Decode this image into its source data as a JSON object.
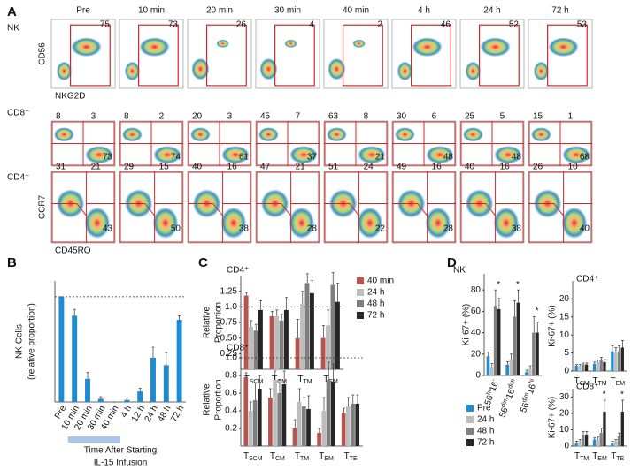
{
  "panels": [
    "A",
    "B",
    "C",
    "D"
  ],
  "panel_a": {
    "columns": [
      "Pre",
      "10 min",
      "20 min",
      "30 min",
      "40 min",
      "4 h",
      "24 h",
      "72 h"
    ],
    "rows": [
      {
        "label": "NK",
        "y_label": "CD56",
        "x_label": "NKG2D",
        "values": [
          [
            75
          ],
          [
            73
          ],
          [
            26
          ],
          [
            4
          ],
          [
            2
          ],
          [
            46
          ],
          [
            52
          ],
          [
            53
          ]
        ]
      },
      {
        "label": "CD8⁺",
        "values": [
          [
            8,
            3,
            73
          ],
          [
            8,
            2,
            74
          ],
          [
            20,
            3,
            61
          ],
          [
            45,
            7,
            37
          ],
          [
            63,
            8,
            21
          ],
          [
            30,
            6,
            48
          ],
          [
            25,
            5,
            48
          ],
          [
            15,
            1,
            68
          ]
        ]
      },
      {
        "label": "CD4⁺",
        "y_label": "CCR7",
        "x_label": "CD45RO",
        "values": [
          [
            31,
            21,
            43
          ],
          [
            29,
            15,
            50
          ],
          [
            40,
            16,
            38
          ],
          [
            47,
            21,
            28
          ],
          [
            51,
            24,
            22
          ],
          [
            49,
            16,
            28
          ],
          [
            40,
            16,
            38
          ],
          [
            26,
            10,
            40
          ]
        ]
      }
    ]
  },
  "chart_data": [
    {
      "type": "bar",
      "y_label": [
        "NK Cells",
        "(relative proportion)"
      ],
      "x_label": [
        "Time After Starting",
        "IL-15 Infusion"
      ],
      "categories": [
        "Pre",
        "10 min",
        "20 min",
        "30 min",
        "40 min",
        "4 h",
        "12 h",
        "24 h",
        "48 h",
        "72 h"
      ],
      "values": [
        1.0,
        0.82,
        0.22,
        0.03,
        0.0,
        0.02,
        0.1,
        0.42,
        0.35,
        0.78
      ],
      "errors": [
        0,
        0.06,
        0.06,
        0.02,
        0,
        0.02,
        0.03,
        0.1,
        0.12,
        0.04
      ],
      "color": "#1f8bd0",
      "ylim": [
        0,
        1.15
      ],
      "reference_line": 1
    },
    {
      "type": "grouped_bar",
      "title": "CD4⁺",
      "y_label": [
        "Relative",
        "Proportion"
      ],
      "categories": [
        "TSCM",
        "TCM",
        "TTM",
        "TEM"
      ],
      "series": [
        {
          "name": "40 min",
          "color": "#b85450",
          "values": [
            1.18,
            0.85,
            0.5,
            0.5
          ],
          "errors": [
            0.05,
            0.08,
            0.3,
            0.2
          ]
        },
        {
          "name": "24 h",
          "color": "#bdbdbd",
          "values": [
            0.68,
            0.85,
            1.05,
            0.7
          ],
          "errors": [
            0.1,
            0.1,
            0.2,
            0.25
          ]
        },
        {
          "name": "48 h",
          "color": "#7f7f7f",
          "values": [
            0.62,
            0.78,
            1.38,
            1.35
          ],
          "errors": [
            0.1,
            0.1,
            0.15,
            0.2
          ]
        },
        {
          "name": "72 h",
          "color": "#262626",
          "values": [
            0.95,
            0.95,
            1.22,
            1.08
          ],
          "errors": [
            0.15,
            0.2,
            0.2,
            0.3
          ]
        }
      ],
      "ylim": [
        0,
        1.5
      ],
      "yticks": [
        0.25,
        {
          "value": 0.5,
          "label": "0.50"
        },
        0.75,
        {
          "value": 1,
          "label": "1.0"
        },
        1.25
      ],
      "reference_line": 1,
      "legend": "right"
    },
    {
      "type": "grouped_bar",
      "title": "CD8⁺",
      "y_label": [
        "Relative",
        "Proportion"
      ],
      "categories": [
        "TSCM",
        "TCM",
        "TTM",
        "TEM",
        "TTE"
      ],
      "series": [
        {
          "name": "40 min",
          "color": "#b85450",
          "values": [
            0.78,
            0.55,
            0.2,
            0.15,
            0.38
          ],
          "errors": [
            0.05,
            0.1,
            0.1,
            0.05,
            0.05
          ]
        },
        {
          "name": "24 h",
          "color": "#bdbdbd",
          "values": [
            0.4,
            0.75,
            0.5,
            0.4,
            0.45
          ],
          "errors": [
            0.1,
            0.1,
            0.15,
            0.15,
            0.1
          ]
        },
        {
          "name": "48 h",
          "color": "#7f7f7f",
          "values": [
            0.52,
            0.6,
            0.45,
            0.75,
            0.48
          ],
          "errors": [
            0.2,
            0.15,
            0.1,
            0.2,
            0.1
          ]
        },
        {
          "name": "72 h",
          "color": "#262626",
          "values": [
            0.65,
            0.7,
            0.42,
            0.73,
            0.48
          ],
          "errors": [
            0.15,
            0.15,
            0.15,
            0.2,
            0.1
          ]
        }
      ],
      "ylim": [
        0,
        1.05
      ],
      "yticks": [
        0.2,
        0.4,
        0.6,
        0.8,
        {
          "value": 1,
          "label": "1.0"
        }
      ],
      "reference_line": 1
    },
    {
      "type": "grouped_bar",
      "title": "NK",
      "y_label": [
        "Ki-67+ (%)"
      ],
      "categories": [
        "56hi16-",
        "56dim16dim",
        "56dim16hi"
      ],
      "series": [
        {
          "name": "Pre",
          "color": "#1f8bd0",
          "values": [
            18,
            10,
            3
          ],
          "errors": [
            4,
            3,
            2
          ]
        },
        {
          "name": "24 h",
          "color": "#bdbdbd",
          "values": [
            8,
            15,
            6
          ],
          "errors": [
            3,
            5,
            3
          ]
        },
        {
          "name": "48 h",
          "color": "#7f7f7f",
          "values": [
            65,
            55,
            40
          ],
          "errors": [
            15,
            15,
            15
          ]
        },
        {
          "name": "72 h",
          "color": "#262626",
          "values": [
            62,
            68,
            40
          ],
          "errors": [
            10,
            12,
            10
          ]
        }
      ],
      "ylim": [
        0,
        95
      ],
      "yticks": [
        0,
        20,
        40,
        60,
        80
      ],
      "significant": [
        true,
        true,
        true
      ],
      "significance_marker": "*",
      "legend": "bottom-left"
    },
    {
      "type": "grouped_bar",
      "title": "CD4⁺",
      "y_label": [
        "Ki-67+ (%)"
      ],
      "categories": [
        "TCM",
        "TTM",
        "TEM"
      ],
      "series": [
        {
          "name": "Pre",
          "color": "#1f8bd0",
          "values": [
            1.5,
            2,
            5.5
          ],
          "errors": [
            0.3,
            0.5,
            1.5
          ]
        },
        {
          "name": "24 h",
          "color": "#bdbdbd",
          "values": [
            1.5,
            2.5,
            5
          ],
          "errors": [
            0.3,
            0.6,
            1.5
          ]
        },
        {
          "name": "48 h",
          "color": "#7f7f7f",
          "values": [
            1.8,
            3,
            5.5
          ],
          "errors": [
            0.4,
            0.8,
            1.5
          ]
        },
        {
          "name": "72 h",
          "color": "#262626",
          "values": [
            1.8,
            2.5,
            6.5
          ],
          "errors": [
            0.4,
            0.7,
            2
          ]
        }
      ],
      "ylim": [
        0,
        25
      ],
      "yticks": [
        0,
        5,
        10,
        15,
        20
      ]
    },
    {
      "type": "grouped_bar",
      "title": "CD8⁺",
      "y_label": [
        "Ki-67+ (%)"
      ],
      "categories": [
        "TTM",
        "TEM",
        "TTE"
      ],
      "series": [
        {
          "name": "Pre",
          "color": "#1f8bd0",
          "values": [
            2,
            4,
            2
          ],
          "errors": [
            1,
            1,
            1
          ]
        },
        {
          "name": "24 h",
          "color": "#bdbdbd",
          "values": [
            3,
            4,
            3
          ],
          "errors": [
            1,
            1.5,
            1
          ]
        },
        {
          "name": "48 h",
          "color": "#7f7f7f",
          "values": [
            7,
            8,
            6
          ],
          "errors": [
            2,
            3,
            2
          ]
        },
        {
          "name": "72 h",
          "color": "#262626",
          "values": [
            7,
            21,
            21
          ],
          "errors": [
            2,
            7,
            7
          ]
        }
      ],
      "ylim": [
        0,
        35
      ],
      "yticks": [
        0,
        10,
        20,
        30
      ],
      "significant": [
        false,
        true,
        true
      ],
      "significance_marker": "*"
    }
  ]
}
